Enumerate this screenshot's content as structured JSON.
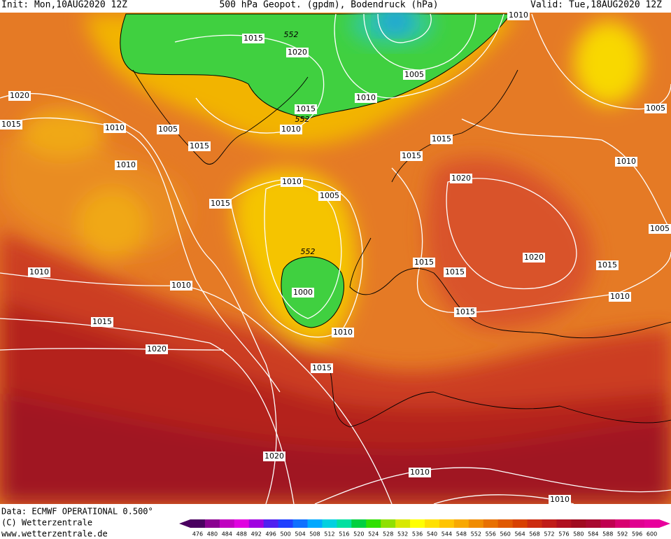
{
  "header": {
    "init": "Init: Mon,10AUG2020 12Z",
    "title": "500 hPa Geopot. (gpdm), Bodendruck (hPa)",
    "valid": "Valid: Tue,18AUG2020 12Z"
  },
  "isobar_labels": [
    "1015",
    "552",
    "1020",
    "1005",
    "1010",
    "1010",
    "1020",
    "1015",
    "1010",
    "1005",
    "1015",
    "552",
    "1010",
    "1015",
    "1010",
    "1015",
    "1015",
    "1005",
    "1010",
    "1020",
    "1010",
    "1005",
    "1015",
    "552",
    "1000",
    "1010",
    "1010",
    "1015",
    "1015",
    "1020",
    "1015",
    "1005",
    "1010",
    "1015",
    "1015",
    "1010",
    "1020",
    "1015",
    "1020",
    "1010",
    "1010"
  ],
  "footer": {
    "data": "Data: ECMWF OPERATIONAL 0.500°",
    "copyright": "(C) Wetterzentrale",
    "url": "www.wetterzentrale.de"
  },
  "colorbar": {
    "labels": [
      476,
      480,
      484,
      488,
      492,
      496,
      500,
      504,
      508,
      512,
      516,
      520,
      524,
      528,
      532,
      536,
      540,
      544,
      548,
      552,
      556,
      560,
      564,
      568,
      572,
      576,
      580,
      584,
      588,
      592,
      596,
      600
    ]
  }
}
